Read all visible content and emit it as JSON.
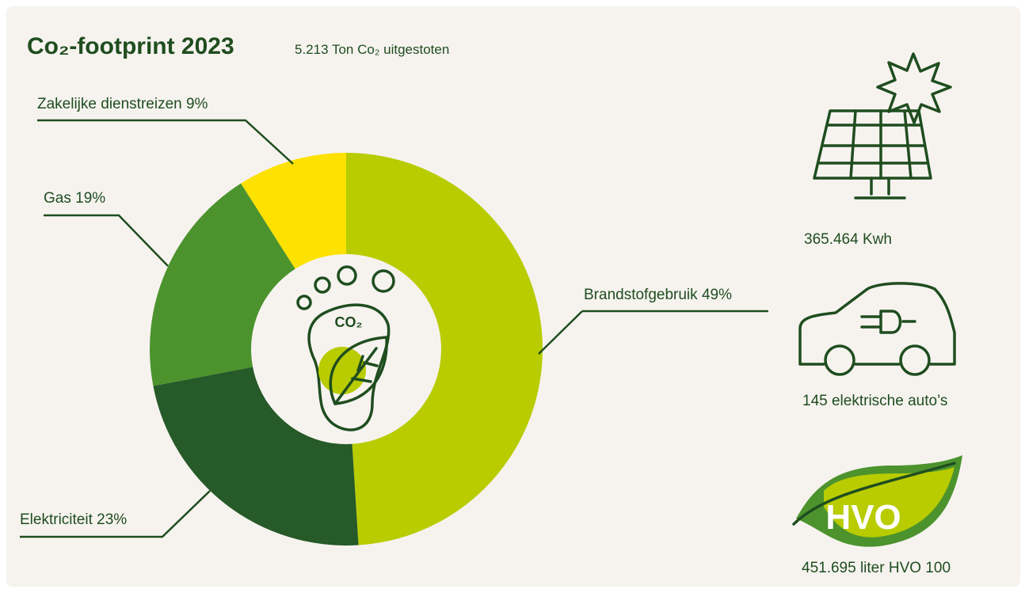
{
  "chart_data": {
    "type": "pie",
    "title": "Co₂-footprint 2023",
    "subtitle": "5.213 Ton Co₂ uitgestoten",
    "categories": [
      "Brandstofgebruik",
      "Elektriciteit",
      "Gas",
      "Zakelijke dienstreizen"
    ],
    "values": [
      49,
      23,
      19,
      9
    ],
    "value_labels": [
      "49%",
      "23%",
      "19%",
      "9%"
    ],
    "colors": [
      "#b8cc00",
      "#265a28",
      "#4c932d",
      "#fde100"
    ],
    "donut": true,
    "center_icon_label": "CO₂",
    "stats": [
      {
        "label": "365.464 Kwh"
      },
      {
        "label": "145 elektrische auto’s"
      },
      {
        "label": "451.695 liter HVO 100",
        "icon_label": "HVO"
      }
    ]
  }
}
